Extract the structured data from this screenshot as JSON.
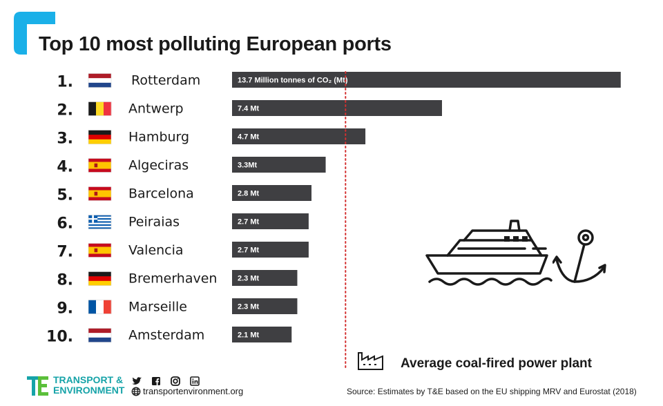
{
  "chart_data": {
    "type": "bar",
    "orientation": "horizontal",
    "title": "Top 10 most polluting European ports",
    "ranks": [
      "1.",
      "2.",
      "3.",
      "4.",
      "5.",
      "6.",
      "7.",
      "8.",
      "9.",
      "10."
    ],
    "categories": [
      "Rotterdam",
      "Antwerp",
      "Hamburg",
      "Algeciras",
      "Barcelona",
      "Peiraias",
      "Valencia",
      "Bremerhaven",
      "Marseille",
      "Amsterdam"
    ],
    "flags": [
      "netherlands",
      "belgium",
      "germany",
      "spain",
      "spain",
      "greece",
      "spain",
      "germany",
      "france",
      "netherlands"
    ],
    "values": [
      13.7,
      7.4,
      4.7,
      3.3,
      2.8,
      2.7,
      2.7,
      2.3,
      2.3,
      2.1
    ],
    "value_labels": [
      "13.7 Million tonnes of CO₂ (Mt)",
      "7.4 Mt",
      "4.7 Mt",
      "3.3Mt",
      "2.8 Mt",
      "2.7 Mt",
      "2.7 Mt",
      "2.3 Mt",
      "2.3 Mt",
      "2.1 Mt"
    ],
    "units": "Million tonnes of CO₂ (Mt)",
    "reference_line": {
      "label": "Average coal-fired power plant",
      "value": 4.0,
      "color": "#d32f2f",
      "style": "dotted"
    },
    "xlim": [
      0,
      13.9
    ],
    "bar_color": "#3f3f42",
    "grid": false
  },
  "header": {
    "title": "Top 10 most polluting European ports"
  },
  "legend": {
    "label": "Average coal-fired power plant"
  },
  "footer": {
    "brand": "TRANSPORT & ENVIRONMENT",
    "brand_line1": "TRANSPORT &",
    "brand_line2": "ENVIRONMENT",
    "website": "transportenvironment.org",
    "social_icons": [
      "twitter-icon",
      "facebook-icon",
      "instagram-icon",
      "linkedin-icon"
    ],
    "source": "Source: Estimates by T&E based on the EU shipping MRV and Eurostat (2018)"
  },
  "colors": {
    "accent": "#1ab0e8",
    "brand": "#16a3a8",
    "brand_green": "#5bbf3a",
    "bar": "#3f3f42",
    "reference": "#d32f2f"
  }
}
